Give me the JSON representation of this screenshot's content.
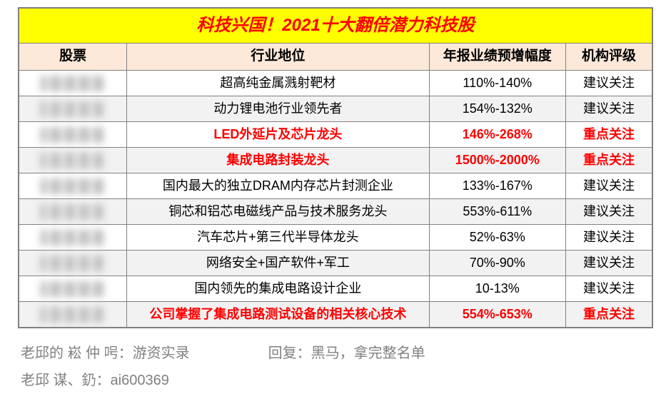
{
  "title": "科技兴国！2021十大翻倍潜力科技股",
  "columns": [
    "股票",
    "行业地位",
    "年报业绩预增幅度",
    "机构评级"
  ],
  "rows": [
    {
      "industry": "超高纯金属溅射靶材",
      "growth": "110%-140%",
      "rating": "建议关注",
      "highlight": false,
      "alt": false
    },
    {
      "industry": "动力锂电池行业领先者",
      "growth": "154%-132%",
      "rating": "建议关注",
      "highlight": false,
      "alt": true
    },
    {
      "industry": "LED外延片及芯片龙头",
      "growth": "146%-268%",
      "rating": "重点关注",
      "highlight": true,
      "alt": false
    },
    {
      "industry": "集成电路封装龙头",
      "growth": "1500%-2000%",
      "rating": "重点关注",
      "highlight": true,
      "alt": true
    },
    {
      "industry": "国内最大的独立DRAM内存芯片封测企业",
      "growth": "133%-167%",
      "rating": "建议关注",
      "highlight": false,
      "alt": false
    },
    {
      "industry": "铜芯和铝芯电磁线产品与技术服务龙头",
      "growth": "553%-611%",
      "rating": "建议关注",
      "highlight": false,
      "alt": true
    },
    {
      "industry": "汽车芯片+第三代半导体龙头",
      "growth": "52%-63%",
      "rating": "建议关注",
      "highlight": false,
      "alt": false
    },
    {
      "industry": "网络安全+国产软件+军工",
      "growth": "70%-90%",
      "rating": "建议关注",
      "highlight": false,
      "alt": true
    },
    {
      "industry": "国内领先的集成电路设计企业",
      "growth": "10-13%",
      "rating": "建议关注",
      "highlight": false,
      "alt": false
    },
    {
      "industry": "公司掌握了集成电路测试设备的相关核心技术",
      "growth": "554%-653%",
      "rating": "重点关注",
      "highlight": true,
      "alt": true
    }
  ],
  "footer": {
    "line1_left": "老邱的 崧 仲 呺：游资实录",
    "line1_right": "回复：黑马，拿完整名单",
    "line2_left": "老邱 谋、釢：ai600369"
  },
  "colors": {
    "title_bg": "#ffff00",
    "title_fg": "#ff0000",
    "header_bg": "#fde9d9",
    "border": "#808080",
    "alt_bg": "#f2f2f2",
    "highlight_fg": "#ff0000",
    "footer_fg": "#808080"
  }
}
